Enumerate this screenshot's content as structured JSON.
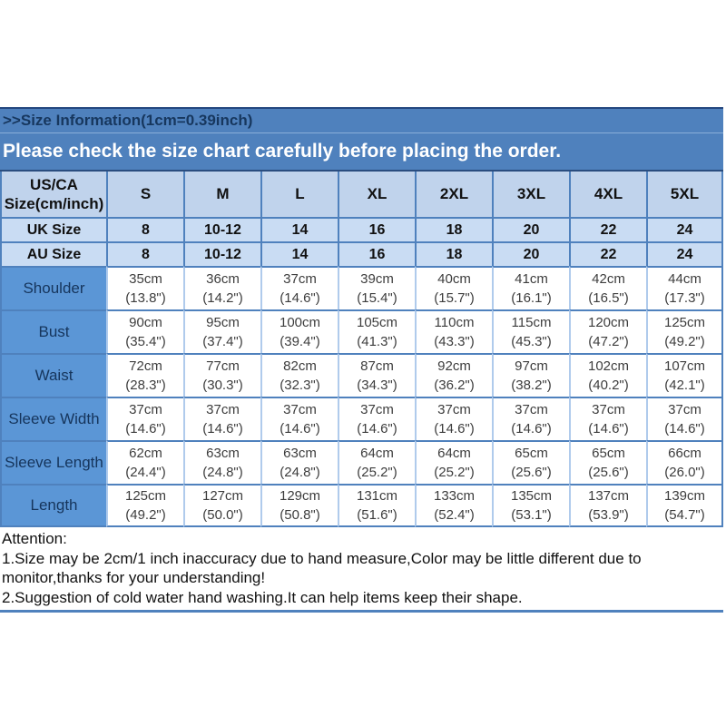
{
  "banner": {
    "title": ">>Size Information(1cm=0.39inch)",
    "notice": "Please check the size chart carefully before placing the order."
  },
  "table": {
    "corner_header_line1": "US/CA",
    "corner_header_line2": "Size(cm/inch)",
    "size_headers": [
      "S",
      "M",
      "L",
      "XL",
      "2XL",
      "3XL",
      "4XL",
      "5XL"
    ],
    "uk_row": {
      "label": "UK Size",
      "values": [
        "8",
        "10-12",
        "14",
        "16",
        "18",
        "20",
        "22",
        "24"
      ]
    },
    "au_row": {
      "label": "AU Size",
      "values": [
        "8",
        "10-12",
        "14",
        "16",
        "18",
        "20",
        "22",
        "24"
      ]
    },
    "measure_rows": [
      {
        "label": "Shoulder",
        "cm": [
          "35cm",
          "36cm",
          "37cm",
          "39cm",
          "40cm",
          "41cm",
          "42cm",
          "44cm"
        ],
        "inch": [
          "(13.8\")",
          "(14.2\")",
          "(14.6\")",
          "(15.4\")",
          "(15.7\")",
          "(16.1\")",
          "(16.5\")",
          "(17.3\")"
        ]
      },
      {
        "label": "Bust",
        "cm": [
          "90cm",
          "95cm",
          "100cm",
          "105cm",
          "110cm",
          "115cm",
          "120cm",
          "125cm"
        ],
        "inch": [
          "(35.4\")",
          "(37.4\")",
          "(39.4\")",
          "(41.3\")",
          "(43.3\")",
          "(45.3\")",
          "(47.2\")",
          "(49.2\")"
        ]
      },
      {
        "label": "Waist",
        "cm": [
          "72cm",
          "77cm",
          "82cm",
          "87cm",
          "92cm",
          "97cm",
          "102cm",
          "107cm"
        ],
        "inch": [
          "(28.3\")",
          "(30.3\")",
          "(32.3\")",
          "(34.3\")",
          "(36.2\")",
          "(38.2\")",
          "(40.2\")",
          "(42.1\")"
        ]
      },
      {
        "label": "Sleeve Width",
        "cm": [
          "37cm",
          "37cm",
          "37cm",
          "37cm",
          "37cm",
          "37cm",
          "37cm",
          "37cm"
        ],
        "inch": [
          "(14.6\")",
          "(14.6\")",
          "(14.6\")",
          "(14.6\")",
          "(14.6\")",
          "(14.6\")",
          "(14.6\")",
          "(14.6\")"
        ]
      },
      {
        "label": "Sleeve Length",
        "cm": [
          "62cm",
          "63cm",
          "63cm",
          "64cm",
          "64cm",
          "65cm",
          "65cm",
          "66cm"
        ],
        "inch": [
          "(24.4\")",
          "(24.8\")",
          "(24.8\")",
          "(25.2\")",
          "(25.2\")",
          "(25.6\")",
          "(25.6\")",
          "(26.0\")"
        ]
      },
      {
        "label": "Length",
        "cm": [
          "125cm",
          "127cm",
          "129cm",
          "131cm",
          "133cm",
          "135cm",
          "137cm",
          "139cm"
        ],
        "inch": [
          "(49.2\")",
          "(50.0\")",
          "(50.8\")",
          "(51.6\")",
          "(52.4\")",
          "(53.1\")",
          "(53.9\")",
          "(54.7\")"
        ]
      }
    ]
  },
  "attention": {
    "heading": "Attention:",
    "item1": "1.Size may be 2cm/1 inch inaccuracy due to hand measure,Color may be little different due to monitor,thanks for your understanding!",
    "item2": "2.Suggestion of cold water hand washing.It can help items keep their shape."
  },
  "colors": {
    "banner_bg": "#4f81bd",
    "banner_title_text": "#17375e",
    "notice_text": "#ffffff",
    "header_row_bg": "#c0d3ec",
    "size_row_bg": "#c9dcf3",
    "label_column_bg": "#5b96d6",
    "grid_border": "#4f81bd",
    "dark_border": "#24477f",
    "light_grid": "#b0cbec"
  }
}
